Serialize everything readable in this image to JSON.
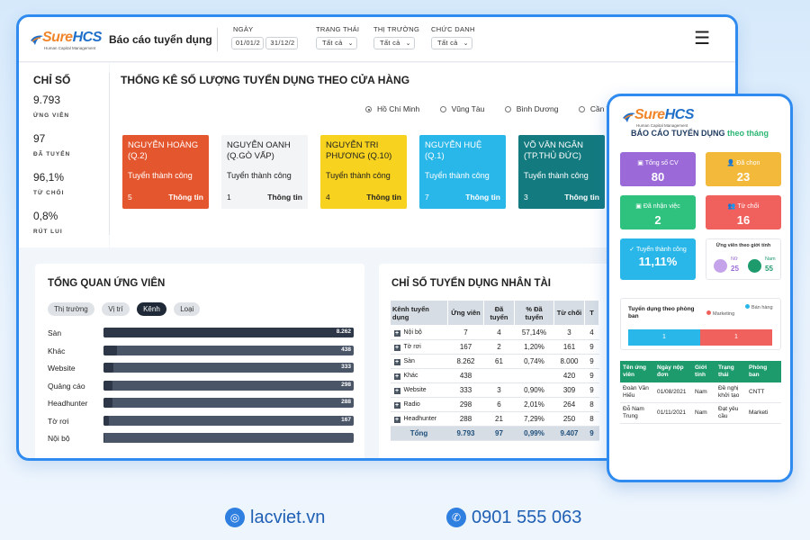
{
  "header": {
    "app_title": "Báo cáo tuyển dụng",
    "logo_text_a": "Sure",
    "logo_text_b": "HCS",
    "logo_tagline": "Human Capital Management",
    "date_label": "NGÀY",
    "date_from": "01/01/2",
    "date_to": "31/12/2",
    "filters": [
      {
        "label": "TRẠNG THÁI",
        "value": "Tất cả"
      },
      {
        "label": "THỊ TRƯỜNG",
        "value": "Tất cả"
      },
      {
        "label": "CHỨC DANH",
        "value": "Tất cả"
      }
    ]
  },
  "kpis": {
    "title": "CHỈ SỐ",
    "items": [
      {
        "value": "9.793",
        "label": "ỨNG VIÊN"
      },
      {
        "value": "97",
        "label": "ĐÃ TUYỂN"
      },
      {
        "value": "96,1%",
        "label": "TỪ CHỐI"
      },
      {
        "value": "0,8%",
        "label": "RÚT LUI"
      }
    ]
  },
  "stores": {
    "title": "THỐNG KÊ SỐ LƯỢNG TUYỂN DỤNG THEO CỬA HÀNG",
    "regions": [
      "Hồ Chí Minh",
      "Vũng Tàu",
      "Bình Dương",
      "Cần Thơ"
    ],
    "cards": [
      {
        "name": "NGUYỄN HOÀNG (Q.2)",
        "status": "Tuyển thành công",
        "count": "5",
        "link": "Thông tin",
        "color": "#e4572e"
      },
      {
        "name": "NGUYỄN OANH (Q.GÒ VẤP)",
        "status": "Tuyển thành công",
        "count": "1",
        "link": "Thông tin",
        "color": "#f3f4f6"
      },
      {
        "name": "NGUYỄN TRI PHƯƠNG (Q.10)",
        "status": "Tuyển thành công",
        "count": "4",
        "link": "Thông tin",
        "color": "#f7d21e"
      },
      {
        "name": "NGUYỄN HUỆ (Q.1)",
        "status": "Tuyển thành công",
        "count": "7",
        "link": "Thông tin",
        "color": "#29b6e8"
      },
      {
        "name": "VÕ VĂN NGÂN (TP.THỦ ĐỨC)",
        "status": "Tuyển thành công",
        "count": "3",
        "link": "Thông tin",
        "color": "#137a7f"
      }
    ]
  },
  "overview": {
    "title": "TỔNG QUAN ỨNG VIÊN",
    "chips": [
      "Thị trường",
      "Vị trí",
      "Kênh",
      "Loại"
    ],
    "bars": [
      {
        "label": "Sàn",
        "value": 8262,
        "text": "8.262"
      },
      {
        "label": "Khác",
        "value": 438,
        "text": "438"
      },
      {
        "label": "Website",
        "value": 333,
        "text": "333"
      },
      {
        "label": "Quảng cáo",
        "value": 298,
        "text": "298"
      },
      {
        "label": "Headhunter",
        "value": 288,
        "text": "288"
      },
      {
        "label": "Tờ rơi",
        "value": 167,
        "text": "167"
      },
      {
        "label": "Nội bộ",
        "value": 7,
        "text": ""
      }
    ]
  },
  "talent": {
    "title": "CHỈ SỐ TUYỂN DỤNG NHÂN TÀI",
    "columns": [
      "Kênh tuyển dụng",
      "Ứng viên",
      "Đã tuyển",
      "% Đã tuyển",
      "Từ chối",
      "T"
    ],
    "rows": [
      [
        "Nội bộ",
        "7",
        "4",
        "57,14%",
        "3",
        "4"
      ],
      [
        "Tờ rơi",
        "167",
        "2",
        "1,20%",
        "161",
        "9"
      ],
      [
        "Sàn",
        "8.262",
        "61",
        "0,74%",
        "8.000",
        "9"
      ],
      [
        "Khác",
        "438",
        "",
        "",
        "420",
        "9"
      ],
      [
        "Website",
        "333",
        "3",
        "0,90%",
        "309",
        "9"
      ],
      [
        "Radio",
        "298",
        "6",
        "2,01%",
        "264",
        "8"
      ],
      [
        "Headhunter",
        "288",
        "21",
        "7,29%",
        "250",
        "8"
      ]
    ],
    "total": [
      "Tổng",
      "9.793",
      "97",
      "0,99%",
      "9.407",
      "9"
    ]
  },
  "mobile": {
    "title_a": "BÁO CÁO TUYỂN DỤNG",
    "title_b": "theo tháng",
    "tiles": [
      {
        "label": "Tổng số CV",
        "value": "80",
        "color": "#9b6ad8"
      },
      {
        "label": "Đã chọn",
        "value": "23",
        "color": "#f3b93b"
      },
      {
        "label": "Đã nhận việc",
        "value": "2",
        "color": "#2ec27e"
      },
      {
        "label": "Từ chối",
        "value": "16",
        "color": "#f0605d"
      },
      {
        "label": "Tuyển thành công",
        "value": "11,11%",
        "color": "#29b6e8"
      }
    ],
    "gender": {
      "title": "Ứng viên theo giới tính",
      "female_label": "Nữ",
      "female": "25",
      "male_label": "Nam",
      "male": "55"
    },
    "dept": {
      "title": "Tuyển dụng theo phòng ban",
      "legend": [
        "Marketing",
        "Bán hàng"
      ],
      "values": [
        "1",
        "1"
      ]
    },
    "table": {
      "columns": [
        "Tên ứng viên",
        "Ngày nộp đơn",
        "Giới tính",
        "Trạng thái",
        "Phòng ban"
      ],
      "rows": [
        [
          "Đoàn Văn Hiếu",
          "01/08/2021",
          "Nam",
          "Đề nghị khởi tạo",
          "CNTT"
        ],
        [
          "Đỗ Nam Trung",
          "01/11/2021",
          "Nam",
          "Đạt yêu cầu",
          "Marketi"
        ]
      ]
    }
  },
  "footer": {
    "website": "lacviet.vn",
    "phone": "0901 555 063"
  }
}
